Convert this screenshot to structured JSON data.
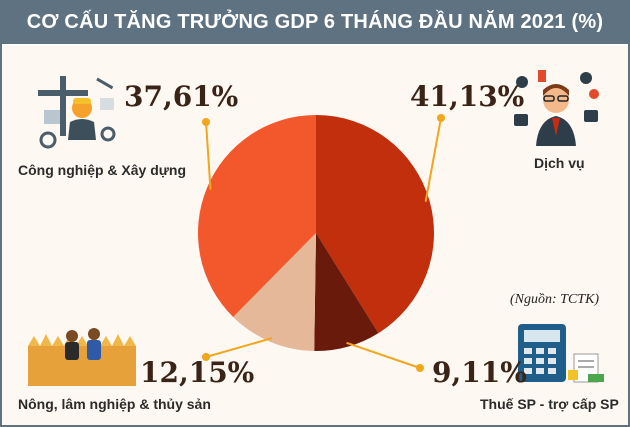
{
  "header": {
    "title": "CƠ CẤU TĂNG TRƯỞNG GDP 6 THÁNG ĐẦU NĂM 2021 (%)"
  },
  "source": "(Nguồn: TCTK)",
  "colors": {
    "header_bg": "#5e7281",
    "slice_services": "#c22f0d",
    "slice_taxes": "#6a1a0a",
    "slice_agriculture": "#e5b89a",
    "slice_industry": "#f2582b",
    "leader": "#f2a61b"
  },
  "chart_data": {
    "type": "pie",
    "title": "CƠ CẤU TĂNG TRƯỞNG GDP 6 THÁNG ĐẦU NĂM 2021 (%)",
    "slices": [
      {
        "label": "Dịch vụ",
        "value": 41.13,
        "display": "41,13%"
      },
      {
        "label": "Thuế SP - trợ cấp SP",
        "value": 9.11,
        "display": "9,11%"
      },
      {
        "label": "Nông, lâm nghiệp & thủy sản",
        "value": 12.15,
        "display": "12,15%"
      },
      {
        "label": "Công nghiệp & Xây dựng",
        "value": 37.61,
        "display": "37,61%"
      }
    ]
  },
  "icons": {
    "industry": "factory-worker-icon",
    "services": "office-worker-icon",
    "agriculture": "farmers-icon",
    "taxes": "calculator-taxes-icon"
  }
}
